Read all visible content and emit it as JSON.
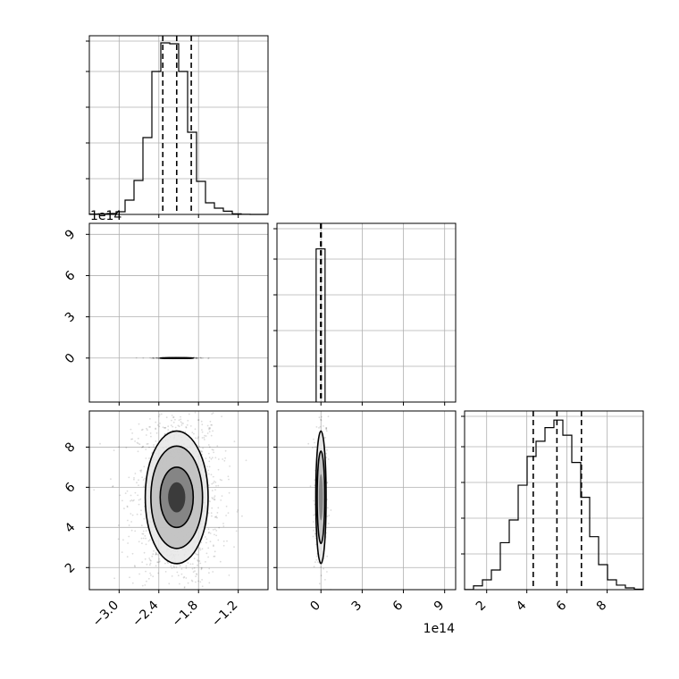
{
  "chart_data": {
    "type": "corner",
    "grid": true,
    "panels": {
      "hist_p1": {
        "type": "histogram",
        "x_range": [
          -3.45,
          -0.75
        ],
        "bin_edges": [
          -3.45,
          -3.315,
          -3.18,
          -3.045,
          -2.91,
          -2.775,
          -2.64,
          -2.505,
          -2.37,
          -2.235,
          -2.1,
          -1.965,
          -1.83,
          -1.695,
          -1.56,
          -1.425,
          -1.29,
          -1.155,
          -1.02,
          -0.885,
          -0.75
        ],
        "counts": [
          0.02,
          0.03,
          0.05,
          0.15,
          0.8,
          1.9,
          4.3,
          8.0,
          9.6,
          9.55,
          8.0,
          4.6,
          1.85,
          0.65,
          0.35,
          0.18,
          0.03,
          0.01,
          0.0,
          0.0
        ],
        "y_max": 10,
        "quantiles": [
          -2.34,
          -2.13,
          -1.91
        ]
      },
      "scatter_p1_p2": {
        "type": "density",
        "x_range": [
          -3.45,
          -0.75
        ],
        "y_range": [
          -3.2,
          9.8
        ],
        "center": [
          -2.13,
          0.0
        ],
        "contour_levels": [
          {
            "width": 0.5,
            "height": 0.045
          },
          {
            "width": 0.38,
            "height": 0.032
          },
          {
            "width": 0.26,
            "height": 0.02
          },
          {
            "width": 0.13,
            "height": 0.01
          }
        ]
      },
      "hist_p2": {
        "type": "histogram",
        "x_range": [
          -3.2,
          9.8
        ],
        "bin_edges": [
          -0.35,
          0.3
        ],
        "counts": [
          9.0
        ],
        "y_max": 10.5,
        "quantiles": [
          -0.02,
          0.0,
          0.02
        ]
      },
      "scatter_p1_p3": {
        "type": "density",
        "x_range": [
          -3.45,
          -0.75
        ],
        "y_range": [
          0.9,
          9.8
        ],
        "center": [
          -2.13,
          5.5
        ],
        "contour_levels": [
          {
            "width": 0.95,
            "height": 6.6
          },
          {
            "width": 0.78,
            "height": 5.1
          },
          {
            "width": 0.5,
            "height": 3.0
          },
          {
            "width": 0.26,
            "height": 1.5
          }
        ]
      },
      "scatter_p2_p3": {
        "type": "density",
        "x_range": [
          -3.2,
          9.8
        ],
        "y_range": [
          0.9,
          9.8
        ],
        "center": [
          0.0,
          5.5
        ],
        "contour_levels": [
          {
            "width": 0.75,
            "height": 6.6
          },
          {
            "width": 0.55,
            "height": 4.6
          },
          {
            "width": 0.3,
            "height": 2.3
          }
        ]
      },
      "hist_p3": {
        "type": "histogram",
        "x_range": [
          0.9,
          9.8
        ],
        "bin_edges": [
          0.9,
          1.345,
          1.79,
          2.235,
          2.68,
          3.125,
          3.57,
          4.015,
          4.46,
          4.905,
          5.35,
          5.795,
          6.24,
          6.685,
          7.13,
          7.575,
          8.02,
          8.465,
          8.91,
          9.355,
          9.8
        ],
        "counts": [
          0.01,
          0.25,
          0.65,
          1.3,
          3.1,
          4.6,
          6.9,
          8.8,
          9.8,
          10.7,
          11.2,
          10.2,
          8.4,
          6.1,
          3.5,
          1.65,
          0.65,
          0.3,
          0.12,
          0.03
        ],
        "y_max": 11.8,
        "quantiles": [
          4.32,
          5.5,
          6.72
        ]
      }
    },
    "tick_labels": {
      "p1_x": [
        "−3.0",
        "−2.4",
        "−1.8",
        "−1.2"
      ],
      "p2_y": [
        "0",
        "3",
        "6",
        "9"
      ],
      "p2_x": [
        "0",
        "3",
        "6",
        "9"
      ],
      "p3_y": [
        "2",
        "4",
        "6",
        "8"
      ],
      "p3_x": [
        "2",
        "4",
        "6",
        "8"
      ]
    },
    "tick_values": {
      "p1_x": [
        -3.0,
        -2.4,
        -1.8,
        -1.2
      ],
      "p2_y": [
        0,
        3,
        6,
        9
      ],
      "p2_x": [
        0,
        3,
        6,
        9
      ],
      "p3_y": [
        2,
        4,
        6,
        8
      ],
      "p3_x": [
        2,
        4,
        6,
        8
      ]
    },
    "offset_labels": {
      "p2_y": "1e14",
      "p2_x": "1e14"
    }
  }
}
